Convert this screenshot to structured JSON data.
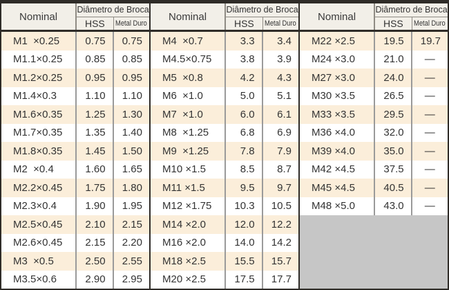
{
  "table": {
    "header": {
      "nominal": "Nominal",
      "diameter_title": "Diâmetro de Broca",
      "hss": "HSS",
      "metal_duro": "Metal Duro"
    },
    "rows_per_group": 14,
    "no_value_symbol": "—",
    "groups": [
      {
        "rows": [
          {
            "nominal": "M1  ×0.25",
            "hss": "0.75",
            "metal_duro": "0.75"
          },
          {
            "nominal": "M1.1×0.25",
            "hss": "0.85",
            "metal_duro": "0.85"
          },
          {
            "nominal": "M1.2×0.25",
            "hss": "0.95",
            "metal_duro": "0.95"
          },
          {
            "nominal": "M1.4×0.3",
            "hss": "1.10",
            "metal_duro": "1.10"
          },
          {
            "nominal": "M1.6×0.35",
            "hss": "1.25",
            "metal_duro": "1.30"
          },
          {
            "nominal": "M1.7×0.35",
            "hss": "1.35",
            "metal_duro": "1.40"
          },
          {
            "nominal": "M1.8×0.35",
            "hss": "1.45",
            "metal_duro": "1.50"
          },
          {
            "nominal": "M2  ×0.4",
            "hss": "1.60",
            "metal_duro": "1.65"
          },
          {
            "nominal": "M2.2×0.45",
            "hss": "1.75",
            "metal_duro": "1.80"
          },
          {
            "nominal": "M2.3×0.4",
            "hss": "1.90",
            "metal_duro": "1.95"
          },
          {
            "nominal": "M2.5×0.45",
            "hss": "2.10",
            "metal_duro": "2.15"
          },
          {
            "nominal": "M2.6×0.45",
            "hss": "2.15",
            "metal_duro": "2.20"
          },
          {
            "nominal": "M3  ×0.5",
            "hss": "2.50",
            "metal_duro": "2.55"
          },
          {
            "nominal": "M3.5×0.6",
            "hss": "2.90",
            "metal_duro": "2.95"
          }
        ]
      },
      {
        "rows": [
          {
            "nominal": "M4  ×0.7",
            "hss": "3.3",
            "metal_duro": "3.4"
          },
          {
            "nominal": "M4.5×0.75",
            "hss": "3.8",
            "metal_duro": "3.9"
          },
          {
            "nominal": "M5  ×0.8",
            "hss": "4.2",
            "metal_duro": "4.3"
          },
          {
            "nominal": "M6  ×1.0",
            "hss": "5.0",
            "metal_duro": "5.1"
          },
          {
            "nominal": "M7  ×1.0",
            "hss": "6.0",
            "metal_duro": "6.1"
          },
          {
            "nominal": "M8  ×1.25",
            "hss": "6.8",
            "metal_duro": "6.9"
          },
          {
            "nominal": "M9  ×1.25",
            "hss": "7.8",
            "metal_duro": "7.9"
          },
          {
            "nominal": "M10 ×1.5",
            "hss": "8.5",
            "metal_duro": "8.7"
          },
          {
            "nominal": "M11 ×1.5",
            "hss": "9.5",
            "metal_duro": "9.7"
          },
          {
            "nominal": "M12 ×1.75",
            "hss": "10.3",
            "metal_duro": "10.5"
          },
          {
            "nominal": "M14 ×2.0",
            "hss": "12.0",
            "metal_duro": "12.2"
          },
          {
            "nominal": "M16 ×2.0",
            "hss": "14.0",
            "metal_duro": "14.2"
          },
          {
            "nominal": "M18 ×2.5",
            "hss": "15.5",
            "metal_duro": "15.7"
          },
          {
            "nominal": "M20 ×2.5",
            "hss": "17.5",
            "metal_duro": "17.7"
          }
        ]
      },
      {
        "rows": [
          {
            "nominal": "M22 ×2.5",
            "hss": "19.5",
            "metal_duro": "19.7"
          },
          {
            "nominal": "M24 ×3.0",
            "hss": "21.0",
            "metal_duro": "—"
          },
          {
            "nominal": "M27 ×3.0",
            "hss": "24.0",
            "metal_duro": "—"
          },
          {
            "nominal": "M30 ×3.5",
            "hss": "26.5",
            "metal_duro": "—"
          },
          {
            "nominal": "M33 ×3.5",
            "hss": "29.5",
            "metal_duro": "—"
          },
          {
            "nominal": "M36 ×4.0",
            "hss": "32.0",
            "metal_duro": "—"
          },
          {
            "nominal": "M39 ×4.0",
            "hss": "35.0",
            "metal_duro": "—"
          },
          {
            "nominal": "M42 ×4.5",
            "hss": "37.5",
            "metal_duro": "—"
          },
          {
            "nominal": "M45 ×4.5",
            "hss": "40.5",
            "metal_duro": "—"
          },
          {
            "nominal": "M48 ×5.0",
            "hss": "43.0",
            "metal_duro": "—"
          }
        ]
      }
    ]
  },
  "colors": {
    "row_cream": "#fbeeda",
    "row_white": "#ffffff",
    "header_bg": "#f2efe8",
    "empty_filler": "#c6c6c6",
    "border_dark": "#2f2c28",
    "line_gray": "#9a9a9a"
  }
}
